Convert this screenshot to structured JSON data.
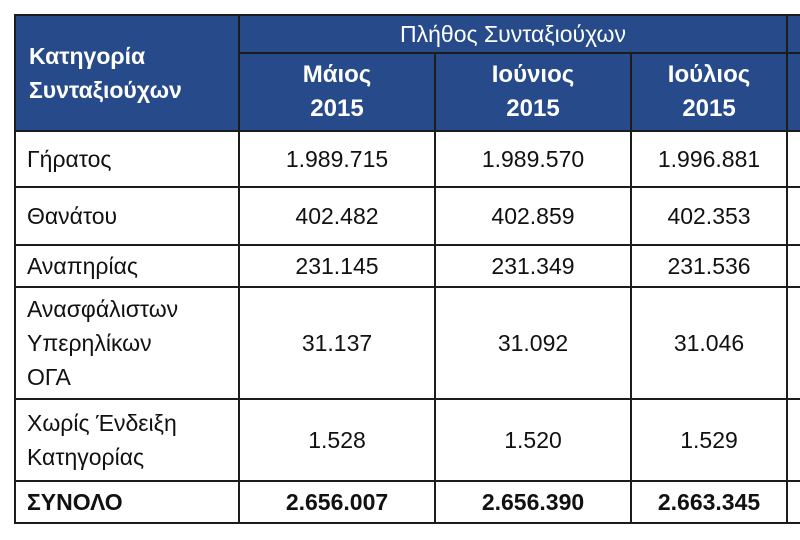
{
  "header": {
    "category_line1": "Κατηγορία",
    "category_line2": "Συνταξιούχων",
    "group_title": "Πλήθος Συνταξιούχων",
    "months": [
      {
        "name": "Μάιος",
        "year": "2015"
      },
      {
        "name": "Ιούνιος",
        "year": "2015"
      },
      {
        "name": "Ιούλιος",
        "year": "2015"
      }
    ]
  },
  "rows": [
    {
      "label_lines": [
        "Γήρατος"
      ],
      "values": [
        "1.989.715",
        "1.989.570",
        "1.996.881"
      ]
    },
    {
      "label_lines": [
        "Θανάτου"
      ],
      "values": [
        "402.482",
        "402.859",
        "402.353"
      ]
    },
    {
      "label_lines": [
        "Αναπηρίας"
      ],
      "values": [
        "231.145",
        "231.349",
        "231.536"
      ]
    },
    {
      "label_lines": [
        "Ανασφάλιστων",
        "Υπερηλίκων",
        "ΟΓΑ"
      ],
      "values": [
        "31.137",
        "31.092",
        "31.046"
      ]
    },
    {
      "label_lines": [
        "Χωρίς Ένδειξη",
        "Κατηγορίας"
      ],
      "values": [
        "1.528",
        "1.520",
        "1.529"
      ]
    }
  ],
  "total": {
    "label": "ΣΥΝΟΛΟ",
    "values": [
      "2.656.007",
      "2.656.390",
      "2.663.345"
    ]
  },
  "colors": {
    "header_background": "#264a8a",
    "header_text": "#ffffff",
    "border": "#1c1c1c"
  }
}
